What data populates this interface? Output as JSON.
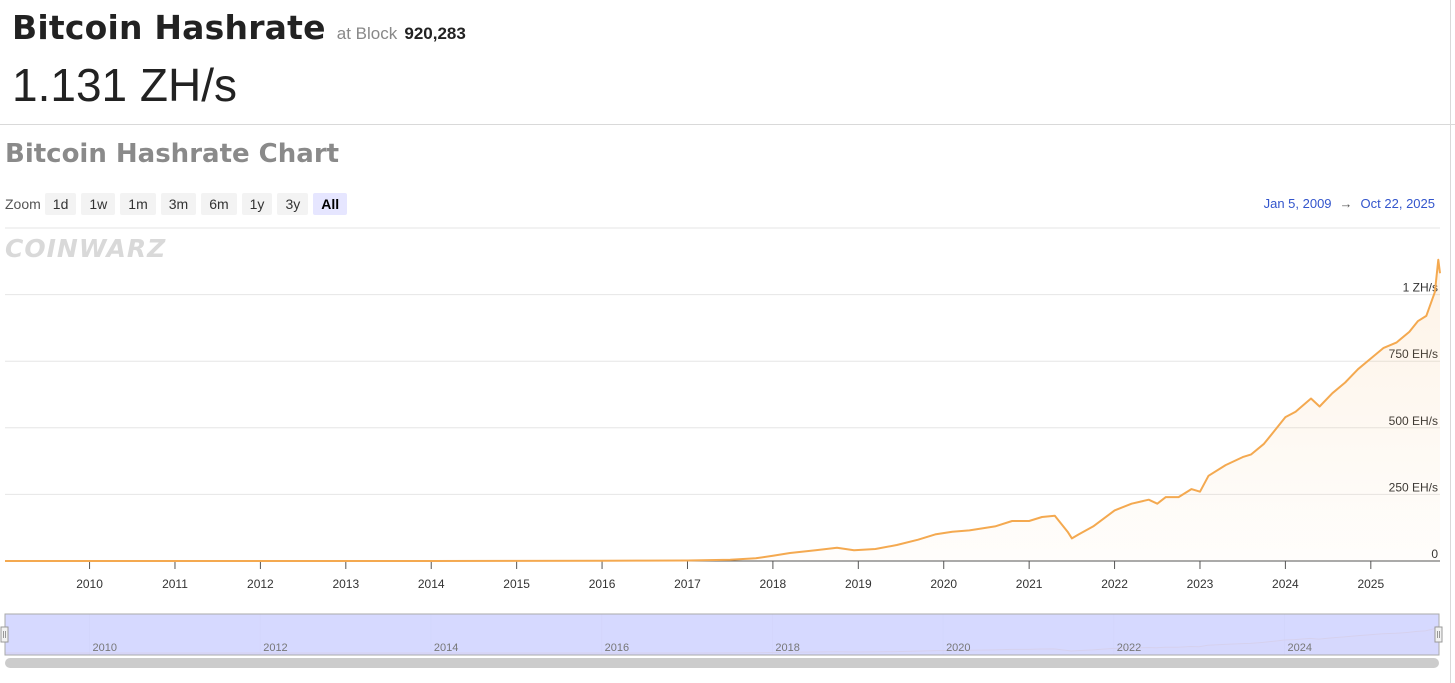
{
  "header": {
    "title": "Bitcoin Hashrate",
    "block_label": "at Block",
    "block_number": "920,283",
    "hashrate_value": "1.131 ZH/s"
  },
  "chart_section": {
    "title": "Bitcoin Hashrate Chart",
    "zoom_label": "Zoom",
    "zoom_buttons": [
      "1d",
      "1w",
      "1m",
      "3m",
      "6m",
      "1y",
      "3y",
      "All"
    ],
    "zoom_selected": "All",
    "range_from": "Jan 5, 2009",
    "range_arrow": "→",
    "range_to": "Oct 22, 2025",
    "watermark": "COINWARZ"
  },
  "colors": {
    "line": "#f4a950",
    "navigator_mask": "#d2d5ff",
    "range_text": "#3355cc"
  },
  "chart_data": {
    "type": "area",
    "title": "Bitcoin Hashrate Chart",
    "x_ticks": [
      "2010",
      "2011",
      "2012",
      "2013",
      "2014",
      "2015",
      "2016",
      "2017",
      "2018",
      "2019",
      "2020",
      "2021",
      "2022",
      "2023",
      "2024",
      "2025"
    ],
    "y_ticks": [
      {
        "value": 0,
        "label": "0"
      },
      {
        "value": 250,
        "label": "250 EH/s"
      },
      {
        "value": 500,
        "label": "500 EH/s"
      },
      {
        "value": 750,
        "label": "750 EH/s"
      },
      {
        "value": 1000,
        "label": "1 ZH/s"
      }
    ],
    "ylim": [
      0,
      1250
    ],
    "xlim": [
      2009.01,
      2025.81
    ],
    "unit": "EH/s",
    "grid": true,
    "series": [
      {
        "x": [
          2009.01,
          2010.0,
          2011.0,
          2012.0,
          2013.0,
          2014.0,
          2015.0,
          2016.0,
          2016.5,
          2017.0,
          2017.5,
          2017.8,
          2018.0,
          2018.2,
          2018.5,
          2018.75,
          2018.95,
          2019.2,
          2019.45,
          2019.7,
          2019.9,
          2020.1,
          2020.3,
          2020.6,
          2020.8,
          2021.0,
          2021.15,
          2021.3,
          2021.45,
          2021.5,
          2021.58,
          2021.75,
          2022.0,
          2022.2,
          2022.4,
          2022.5,
          2022.6,
          2022.75,
          2022.9,
          2023.0,
          2023.1,
          2023.3,
          2023.5,
          2023.6,
          2023.75,
          2023.9,
          2024.0,
          2024.12,
          2024.3,
          2024.4,
          2024.55,
          2024.7,
          2024.85,
          2025.0,
          2025.15,
          2025.3,
          2025.45,
          2025.55,
          2025.65,
          2025.75,
          2025.79,
          2025.81
        ],
        "y": [
          0,
          0,
          0,
          0,
          0,
          0,
          0.3,
          1,
          1.5,
          2,
          5,
          10,
          20,
          30,
          40,
          50,
          40,
          45,
          60,
          80,
          100,
          110,
          115,
          130,
          150,
          150,
          165,
          170,
          110,
          85,
          100,
          130,
          190,
          215,
          230,
          215,
          240,
          240,
          270,
          260,
          320,
          360,
          390,
          400,
          440,
          500,
          540,
          560,
          610,
          580,
          630,
          670,
          720,
          760,
          800,
          820,
          860,
          900,
          920,
          1010,
          1131,
          1080
        ]
      }
    ],
    "navigator_x_ticks": [
      "2010",
      "2012",
      "2014",
      "2016",
      "2018",
      "2020",
      "2022",
      "2024"
    ]
  }
}
